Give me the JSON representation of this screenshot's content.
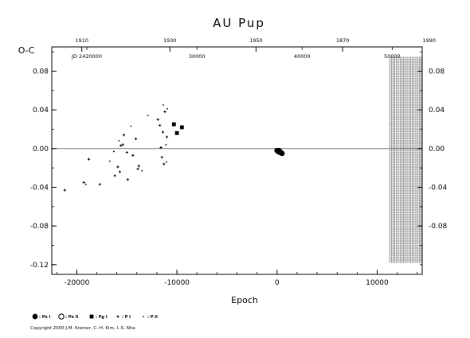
{
  "chart_data": {
    "type": "scatter",
    "title": "AU Pup",
    "ylabel": "O-C",
    "xlabel": "Epoch",
    "xlim": [
      -22500,
      14500
    ],
    "ylim": [
      -0.13,
      0.105
    ],
    "x_ticks": [
      "-20000",
      "-10000",
      "0",
      "10000"
    ],
    "y_ticks": [
      "0.08",
      "0.04",
      "0.00",
      "-0.04",
      "-0.08",
      "-0.12"
    ],
    "y_ticks_right": [
      "0.08",
      "0.04",
      "0.00",
      "-0.04",
      "-0.08"
    ],
    "top_year_ticks": [
      {
        "label": "1910",
        "epoch": -19500
      },
      {
        "label": "1930",
        "epoch": -10700
      },
      {
        "label": "1950",
        "epoch": -2100
      },
      {
        "label": "1870",
        "epoch": 6550
      },
      {
        "label": "1990",
        "epoch": 15200
      }
    ],
    "jd_labels": [
      {
        "label": "JD 2420000",
        "epoch": -19000
      },
      {
        "label": "30000",
        "epoch": -8000
      },
      {
        "label": "40000",
        "epoch": 2500
      },
      {
        "label": "50000",
        "epoch": 11500
      }
    ],
    "series": [
      {
        "name": "Pe I",
        "marker": "circle-filled",
        "points": [
          [
            0,
            -0.002
          ],
          [
            120,
            -0.003
          ],
          [
            260,
            -0.004
          ],
          [
            380,
            -0.004
          ],
          [
            500,
            -0.005
          ],
          [
            200,
            -0.002
          ]
        ]
      },
      {
        "name": "Pe II",
        "marker": "circle-open",
        "points": []
      },
      {
        "name": "Pg I",
        "marker": "square-filled",
        "points": [
          [
            -10300,
            0.025
          ],
          [
            -10000,
            0.016
          ],
          [
            -9500,
            0.022
          ]
        ]
      },
      {
        "name": "P I",
        "marker": "plus",
        "points": [
          [
            -21200,
            -0.043
          ],
          [
            -19300,
            -0.035
          ],
          [
            -18800,
            -0.011
          ],
          [
            -17700,
            -0.037
          ],
          [
            -16200,
            -0.028
          ],
          [
            -15900,
            -0.019
          ],
          [
            -15700,
            -0.024
          ],
          [
            -15600,
            0.003
          ],
          [
            -15400,
            0.004
          ],
          [
            -15300,
            0.014
          ],
          [
            -15000,
            -0.004
          ],
          [
            -14900,
            -0.032
          ],
          [
            -14400,
            -0.007
          ],
          [
            -14100,
            0.01
          ],
          [
            -13900,
            -0.021
          ],
          [
            -13800,
            -0.018
          ],
          [
            -11900,
            0.03
          ],
          [
            -11700,
            0.024
          ],
          [
            -11600,
            0.001
          ],
          [
            -11500,
            -0.009
          ],
          [
            -11400,
            0.017
          ],
          [
            -11300,
            -0.016
          ],
          [
            -11200,
            0.038
          ],
          [
            -11000,
            0.012
          ]
        ]
      },
      {
        "name": "P II",
        "marker": "dot",
        "points": [
          [
            -19100,
            -0.037
          ],
          [
            -16700,
            -0.013
          ],
          [
            -16300,
            -0.003
          ],
          [
            -15800,
            0.008
          ],
          [
            -14600,
            0.023
          ],
          [
            -13500,
            -0.023
          ],
          [
            -12900,
            0.034
          ],
          [
            -11350,
            0.045
          ],
          [
            -11100,
            0.004
          ],
          [
            -11050,
            -0.014
          ],
          [
            -10950,
            0.041
          ]
        ]
      }
    ],
    "legend": [
      {
        "marker": "circle-filled",
        "label": ": Pe I"
      },
      {
        "marker": "circle-open",
        "label": ": Pe II"
      },
      {
        "marker": "square-filled",
        "label": ": Pg I"
      },
      {
        "marker": "plus",
        "label": ": P I"
      },
      {
        "marker": "dot",
        "label": ": P II"
      }
    ],
    "copyright": "Copyright 2000 J.M. Kreiner, C.-H. Kim, I.-S. Nha",
    "grid": false
  }
}
